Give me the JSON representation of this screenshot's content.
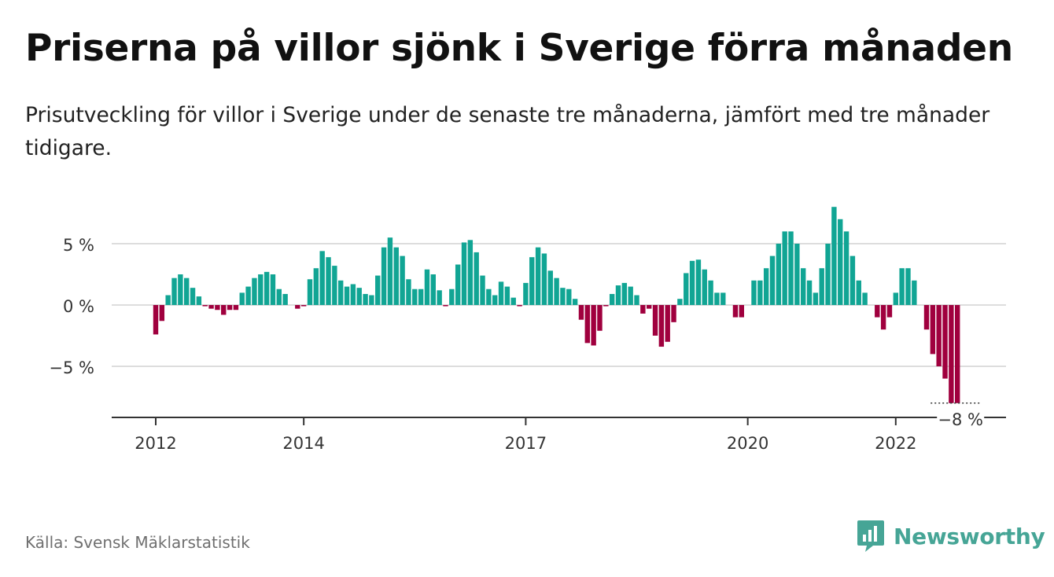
{
  "title": "Priserna på villor sjönk i Sverige förra månaden",
  "subtitle": "Prisutveckling för villor i Sverige under de senaste tre månaderna, jämfört med tre månader tidigare.",
  "source": "Källa: Svensk Mäklarstatistik",
  "brand": {
    "name": "Newsworthy",
    "icon": "newsworthy-logo-icon"
  },
  "colors": {
    "positive": "#11a594",
    "negative": "#a0003e",
    "grid": "#dddddd",
    "axis": "#333333"
  },
  "chart_data": {
    "type": "bar",
    "title": "Priserna på villor sjönk i Sverige förra månaden",
    "subtitle": "Prisutveckling för villor i Sverige under de senaste tre månaderna, jämfört med tre månader tidigare.",
    "xlabel": "",
    "ylabel": "",
    "ylim": [
      -9.2,
      8.3
    ],
    "grid": true,
    "first_month": "2012-01",
    "x_ticks": [
      {
        "label": "2012",
        "month": "2012-01"
      },
      {
        "label": "2014",
        "month": "2014-01"
      },
      {
        "label": "2017",
        "month": "2017-01"
      },
      {
        "label": "2020",
        "month": "2020-01"
      },
      {
        "label": "2022",
        "month": "2022-01"
      }
    ],
    "y_ticks": [
      {
        "value": 5,
        "label": "5 %"
      },
      {
        "value": 0,
        "label": "0 %"
      },
      {
        "value": -5,
        "label": "−5 %"
      }
    ],
    "annotation": {
      "label": "−8 %",
      "value": -8
    },
    "values": [
      -2.4,
      -1.3,
      0.8,
      2.2,
      2.5,
      2.2,
      1.4,
      0.7,
      -0.1,
      -0.3,
      -0.4,
      -0.8,
      -0.4,
      -0.4,
      1.0,
      1.5,
      2.2,
      2.5,
      2.7,
      2.5,
      1.3,
      0.9,
      0.0,
      -0.3,
      -0.1,
      2.1,
      3.0,
      4.4,
      3.9,
      3.2,
      2.0,
      1.5,
      1.7,
      1.4,
      0.9,
      0.8,
      2.4,
      4.7,
      5.5,
      4.7,
      4.0,
      2.1,
      1.3,
      1.3,
      2.9,
      2.5,
      1.2,
      -0.1,
      1.3,
      3.3,
      5.1,
      5.3,
      4.3,
      2.4,
      1.3,
      0.8,
      1.9,
      1.5,
      0.6,
      -0.1,
      1.8,
      3.9,
      4.7,
      4.2,
      2.8,
      2.2,
      1.4,
      1.3,
      0.5,
      -1.2,
      -3.1,
      -3.3,
      -2.1,
      -0.1,
      0.9,
      1.6,
      1.8,
      1.5,
      0.8,
      -0.7,
      -0.3,
      -2.5,
      -3.4,
      -3.0,
      -1.4,
      0.5,
      2.6,
      3.6,
      3.7,
      2.9,
      2.0,
      1.0,
      1.0,
      0.0,
      -1.0,
      -1.0,
      0.0,
      2.0,
      2.0,
      3.0,
      4.0,
      5.0,
      6.0,
      6.0,
      5.0,
      3.0,
      2.0,
      1.0,
      3.0,
      5.0,
      8.0,
      7.0,
      6.0,
      4.0,
      2.0,
      1.0,
      0.0,
      -1.0,
      -2.0,
      -1.0,
      1.0,
      3.0,
      3.0,
      2.0,
      0.0,
      -2.0,
      -4.0,
      -5.0,
      -6.0,
      -8.0,
      -8.0
    ]
  }
}
